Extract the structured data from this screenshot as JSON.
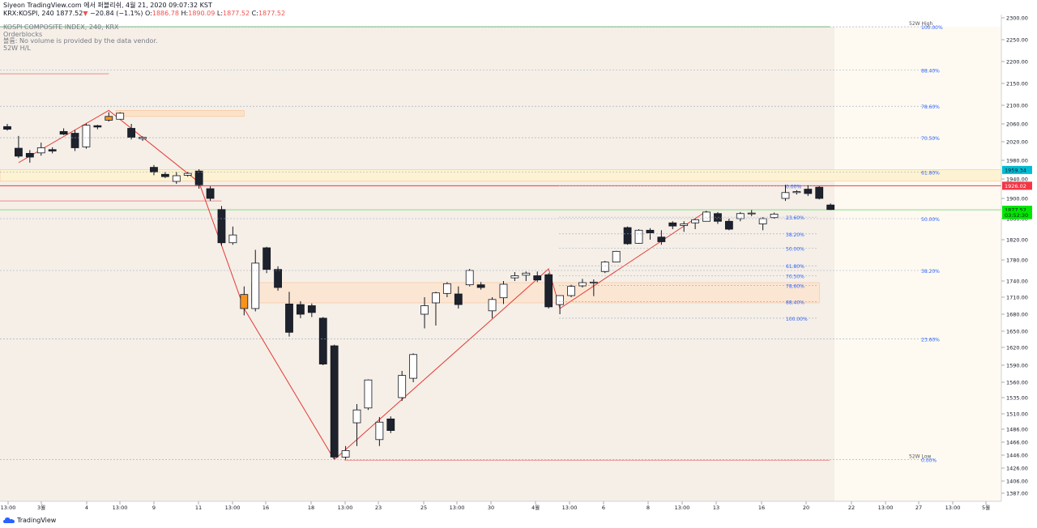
{
  "header": {
    "line1": "Siyeon TradingView.com 에서 퍼블리쉬, 4월 21, 2020 09:07:32 KST",
    "symbol": "KRX:KOSPI, 240",
    "last": "1877.52",
    "arrow": "▼",
    "change": "−20.84 (−1.1%)",
    "o_label": "O:",
    "o_val": "1886.78",
    "h_label": "H:",
    "h_val": "1890.09",
    "l_label": "L:",
    "l_val": "1877.52",
    "c_label": "C:",
    "c_val": "1877.52"
  },
  "legend": {
    "title": "KOSPI COMPOSITE INDEX, 240, KRX",
    "orderblocks": "Orderblocks",
    "volume": "볼륨: No volume is provided by the data vendor.",
    "hl": "52W H/L"
  },
  "brand": "TradingView",
  "chart_data": {
    "type": "candlestick",
    "y_axis_ticks": [
      "2300.00",
      "2250.00",
      "2200.00",
      "2150.00",
      "2100.00",
      "2060.00",
      "2020.00",
      "1980.00",
      "1940.00",
      "1900.00",
      "1860.00",
      "1820.00",
      "1780.00",
      "1740.00",
      "1710.00",
      "1680.00",
      "1650.00",
      "1620.00",
      "1590.00",
      "1560.00",
      "1535.00",
      "1510.00",
      "1486.00",
      "1466.00",
      "1446.00",
      "1426.00",
      "1406.00",
      "1387.00"
    ],
    "ylim": [
      1370,
      2310
    ],
    "x_axis_ticks": [
      "13:00",
      "3월",
      "4",
      "13:00",
      "9",
      "11",
      "13:00",
      "16",
      "18",
      "13:00",
      "23",
      "25",
      "13:00",
      "30",
      "4월",
      "13:00",
      "6",
      "8",
      "13:00",
      "13",
      "16",
      "20",
      "22",
      "13:00",
      "27",
      "13:00",
      "5월"
    ],
    "price_tags": [
      {
        "value": "1959.34",
        "price": 1959.34,
        "color": "#00bcd4"
      },
      {
        "value": "1926.02",
        "price": 1926.02,
        "color": "#f23645"
      },
      {
        "value": "1877.52",
        "price": 1877.52,
        "color": "#00e600"
      },
      {
        "value": "03:52:30",
        "price": 1867,
        "color": "#00e600"
      }
    ],
    "annotations": {
      "hi_label": "52W High",
      "lo_label": "52W Low",
      "hi_price": 2279.5,
      "lo_price": 1439.4
    },
    "fib_big": [
      {
        "label": "100.00%",
        "price": 2279.5
      },
      {
        "label": "88.40%",
        "price": 2181
      },
      {
        "label": "78.60%",
        "price": 2098
      },
      {
        "label": "70.50%",
        "price": 2029
      },
      {
        "label": "61.80%",
        "price": 1955
      },
      {
        "label": "50.00%",
        "price": 1860
      },
      {
        "label": "38.20%",
        "price": 1760
      },
      {
        "label": "23.60%",
        "price": 1636
      },
      {
        "label": "0.00%",
        "price": 1439.4
      }
    ],
    "fib_small": [
      {
        "label": "0.00%",
        "price": 1926
      },
      {
        "label": "23.60%",
        "price": 1863
      },
      {
        "label": "38.20%",
        "price": 1831
      },
      {
        "label": "50.00%",
        "price": 1803
      },
      {
        "label": "61.80%",
        "price": 1769
      },
      {
        "label": "70.50%",
        "price": 1750
      },
      {
        "label": "78.60%",
        "price": 1732
      },
      {
        "label": "88.40%",
        "price": 1702
      },
      {
        "label": "100.00%",
        "price": 1673
      }
    ],
    "candles": [
      {
        "x": "2/28 09:00",
        "o": 2054,
        "h": 2060,
        "c": 2048,
        "l": 2045
      },
      {
        "x": "3/02 09:00",
        "o": 2006,
        "h": 2033,
        "c": 1989,
        "l": 1985
      },
      {
        "x": "3/02 13:00",
        "o": 1995,
        "h": 2002,
        "c": 1987,
        "l": 1975
      },
      {
        "x": "3/03 09:00",
        "o": 1996,
        "h": 2018,
        "c": 2007,
        "l": 1990
      },
      {
        "x": "3/03 13:00",
        "o": 2003,
        "h": 2008,
        "c": 2000,
        "l": 1995
      },
      {
        "x": "3/04 09:00",
        "o": 2043,
        "h": 2050,
        "c": 2037,
        "l": 2035
      },
      {
        "x": "3/04 13:00",
        "o": 2039,
        "h": 2046,
        "c": 2007,
        "l": 2000
      },
      {
        "x": "3/05 09:00",
        "o": 2009,
        "h": 2061,
        "c": 2057,
        "l": 2005
      },
      {
        "x": "3/05 13:00",
        "o": 2056,
        "h": 2058,
        "c": 2053,
        "l": 2048
      },
      {
        "x": "3/06 09:00",
        "o": 2076,
        "h": 2085,
        "c": 2068,
        "l": 2065
      },
      {
        "x": "3/06 13:00",
        "o": 2070,
        "h": 2085,
        "c": 2083,
        "l": 2070
      },
      {
        "x": "3/09 09:00",
        "o": 2050,
        "h": 2060,
        "c": 2030,
        "l": 2025
      },
      {
        "x": "3/09 13:00",
        "o": 2027,
        "h": 2032,
        "c": 2030,
        "l": 2022
      },
      {
        "x": "3/10 09:00",
        "o": 1965,
        "h": 1970,
        "c": 1955,
        "l": 1948
      },
      {
        "x": "3/10 13:00",
        "o": 1950,
        "h": 1955,
        "c": 1945,
        "l": 1942
      },
      {
        "x": "3/11 09:00",
        "o": 1935,
        "h": 1955,
        "c": 1947,
        "l": 1930
      },
      {
        "x": "3/11 13:00",
        "o": 1948,
        "h": 1955,
        "c": 1952,
        "l": 1945
      },
      {
        "x": "3/12 09:00",
        "o": 1957,
        "h": 1961,
        "c": 1928,
        "l": 1920
      },
      {
        "x": "3/12 13:00",
        "o": 1920,
        "h": 1925,
        "c": 1900,
        "l": 1895
      },
      {
        "x": "3/13 09:00",
        "o": 1878,
        "h": 1885,
        "c": 1814,
        "l": 1808
      },
      {
        "x": "3/13 13:00",
        "o": 1814,
        "h": 1845,
        "c": 1829,
        "l": 1810
      },
      {
        "x": "3/16 09:00",
        "o": 1715,
        "h": 1730,
        "c": 1690,
        "l": 1678
      },
      {
        "x": "3/16 13:00",
        "o": 1690,
        "h": 1800,
        "c": 1774,
        "l": 1685
      },
      {
        "x": "3/17 09:00",
        "o": 1804,
        "h": 1806,
        "c": 1762,
        "l": 1755
      },
      {
        "x": "3/17 13:00",
        "o": 1762,
        "h": 1768,
        "c": 1728,
        "l": 1722
      },
      {
        "x": "3/18 09:00",
        "o": 1698,
        "h": 1720,
        "c": 1648,
        "l": 1640
      },
      {
        "x": "3/18 13:00",
        "o": 1697,
        "h": 1703,
        "c": 1680,
        "l": 1673
      },
      {
        "x": "3/19 09:00",
        "o": 1695,
        "h": 1699,
        "c": 1683,
        "l": 1675
      },
      {
        "x": "3/19 13:00",
        "o": 1673,
        "h": 1675,
        "c": 1592,
        "l": 1590
      },
      {
        "x": "3/20 09:00",
        "o": 1623,
        "h": 1625,
        "c": 1443,
        "l": 1439
      },
      {
        "x": "3/20 13:00",
        "o": 1443,
        "h": 1460,
        "c": 1453,
        "l": 1439
      },
      {
        "x": "3/23 09:00",
        "o": 1496,
        "h": 1525,
        "c": 1516,
        "l": 1460
      },
      {
        "x": "3/23 13:00",
        "o": 1519,
        "h": 1565,
        "c": 1564,
        "l": 1516
      },
      {
        "x": "3/24 09:00",
        "o": 1470,
        "h": 1505,
        "c": 1497,
        "l": 1460
      },
      {
        "x": "3/24 13:00",
        "o": 1502,
        "h": 1506,
        "c": 1484,
        "l": 1480
      },
      {
        "x": "3/25 09:00",
        "o": 1535,
        "h": 1580,
        "c": 1572,
        "l": 1530
      },
      {
        "x": "3/25 13:00",
        "o": 1567,
        "h": 1610,
        "c": 1608,
        "l": 1560
      },
      {
        "x": "3/26 09:00",
        "o": 1680,
        "h": 1710,
        "c": 1695,
        "l": 1655
      },
      {
        "x": "3/26 13:00",
        "o": 1700,
        "h": 1720,
        "c": 1718,
        "l": 1660
      },
      {
        "x": "3/27 09:00",
        "o": 1717,
        "h": 1738,
        "c": 1735,
        "l": 1710
      },
      {
        "x": "3/27 13:00",
        "o": 1716,
        "h": 1730,
        "c": 1697,
        "l": 1690
      },
      {
        "x": "3/30 09:00",
        "o": 1733,
        "h": 1763,
        "c": 1760,
        "l": 1730
      },
      {
        "x": "3/30 13:00",
        "o": 1733,
        "h": 1738,
        "c": 1728,
        "l": 1724
      },
      {
        "x": "3/31 09:00",
        "o": 1686,
        "h": 1710,
        "c": 1706,
        "l": 1673
      },
      {
        "x": "3/31 13:00",
        "o": 1709,
        "h": 1740,
        "c": 1734,
        "l": 1698
      },
      {
        "x": "4/01 09:00",
        "o": 1746,
        "h": 1757,
        "c": 1750,
        "l": 1740
      },
      {
        "x": "4/01 13:00",
        "o": 1751,
        "h": 1758,
        "c": 1755,
        "l": 1740
      },
      {
        "x": "4/02 09:00",
        "o": 1750,
        "h": 1758,
        "c": 1742,
        "l": 1738
      },
      {
        "x": "4/02 13:00",
        "o": 1752,
        "h": 1755,
        "c": 1693,
        "l": 1690
      },
      {
        "x": "4/03 09:00",
        "o": 1697,
        "h": 1713,
        "c": 1713,
        "l": 1680
      },
      {
        "x": "4/03 13:00",
        "o": 1713,
        "h": 1733,
        "c": 1730,
        "l": 1710
      },
      {
        "x": "4/06 09:00",
        "o": 1731,
        "h": 1744,
        "c": 1737,
        "l": 1728
      },
      {
        "x": "4/06 13:00",
        "o": 1737,
        "h": 1743,
        "c": 1738,
        "l": 1712
      },
      {
        "x": "4/07 09:00",
        "o": 1758,
        "h": 1778,
        "c": 1776,
        "l": 1755
      },
      {
        "x": "4/07 13:00",
        "o": 1776,
        "h": 1798,
        "c": 1797,
        "l": 1776
      },
      {
        "x": "4/08 09:00",
        "o": 1843,
        "h": 1845,
        "c": 1812,
        "l": 1810
      },
      {
        "x": "4/08 13:00",
        "o": 1813,
        "h": 1840,
        "c": 1838,
        "l": 1812
      },
      {
        "x": "4/09 09:00",
        "o": 1838,
        "h": 1842,
        "c": 1833,
        "l": 1820
      },
      {
        "x": "4/09 13:00",
        "o": 1825,
        "h": 1838,
        "c": 1816,
        "l": 1810
      },
      {
        "x": "4/10 09:00",
        "o": 1852,
        "h": 1855,
        "c": 1846,
        "l": 1840
      },
      {
        "x": "4/10 13:00",
        "o": 1847,
        "h": 1855,
        "c": 1850,
        "l": 1835
      },
      {
        "x": "4/13 09:00",
        "o": 1852,
        "h": 1860,
        "c": 1858,
        "l": 1840
      },
      {
        "x": "4/13 13:00",
        "o": 1855,
        "h": 1875,
        "c": 1873,
        "l": 1855
      },
      {
        "x": "4/14 09:00",
        "o": 1870,
        "h": 1873,
        "c": 1855,
        "l": 1850
      },
      {
        "x": "4/14 13:00",
        "o": 1855,
        "h": 1860,
        "c": 1840,
        "l": 1838
      },
      {
        "x": "4/16 09:00",
        "o": 1860,
        "h": 1873,
        "c": 1870,
        "l": 1855
      },
      {
        "x": "4/16 13:00",
        "o": 1870,
        "h": 1877,
        "c": 1871,
        "l": 1865
      },
      {
        "x": "4/17 09:00",
        "o": 1850,
        "h": 1863,
        "c": 1860,
        "l": 1838
      },
      {
        "x": "4/17 13:00",
        "o": 1862,
        "h": 1872,
        "c": 1869,
        "l": 1860
      },
      {
        "x": "4/20 09:00",
        "o": 1900,
        "h": 1928,
        "c": 1912,
        "l": 1895
      },
      {
        "x": "4/20 13:00",
        "o": 1912,
        "h": 1917,
        "c": 1914,
        "l": 1908
      },
      {
        "x": "4/21 09:00",
        "o": 1919,
        "h": 1927,
        "c": 1910,
        "l": 1905
      },
      {
        "x": "4/21 13:00",
        "o": 1923,
        "h": 1925,
        "c": 1900,
        "l": 1898
      },
      {
        "x": "4/22 09:00",
        "o": 1887,
        "h": 1890,
        "c": 1878,
        "l": 1877
      }
    ],
    "zigzag": [
      [
        1,
        1975
      ],
      [
        9,
        2089
      ],
      [
        17,
        1933
      ],
      [
        21,
        1690
      ],
      [
        29,
        1439
      ],
      [
        48,
        1763
      ],
      [
        49,
        1690
      ],
      [
        62,
        1875
      ]
    ],
    "orderblocks": [
      {
        "top": 2172,
        "bottom": 2172,
        "from": 0,
        "to": 9,
        "fill": false,
        "line": "#f28b8b"
      },
      {
        "top": 2089,
        "bottom": 2076,
        "from": 10,
        "to": 21,
        "fill": true,
        "color": "#fce3c7"
      },
      {
        "top": 1960,
        "bottom": 1936,
        "from": 0,
        "to": 90,
        "fill": true,
        "color": "#fdf3d2"
      },
      {
        "top": 1895,
        "bottom": 1895,
        "from": 0,
        "to": 19,
        "fill": false,
        "line": "#f28b8b"
      },
      {
        "top": 1737,
        "bottom": 1700,
        "from": 22,
        "to": 72,
        "fill": true,
        "color": "#fbe6d3"
      }
    ]
  }
}
